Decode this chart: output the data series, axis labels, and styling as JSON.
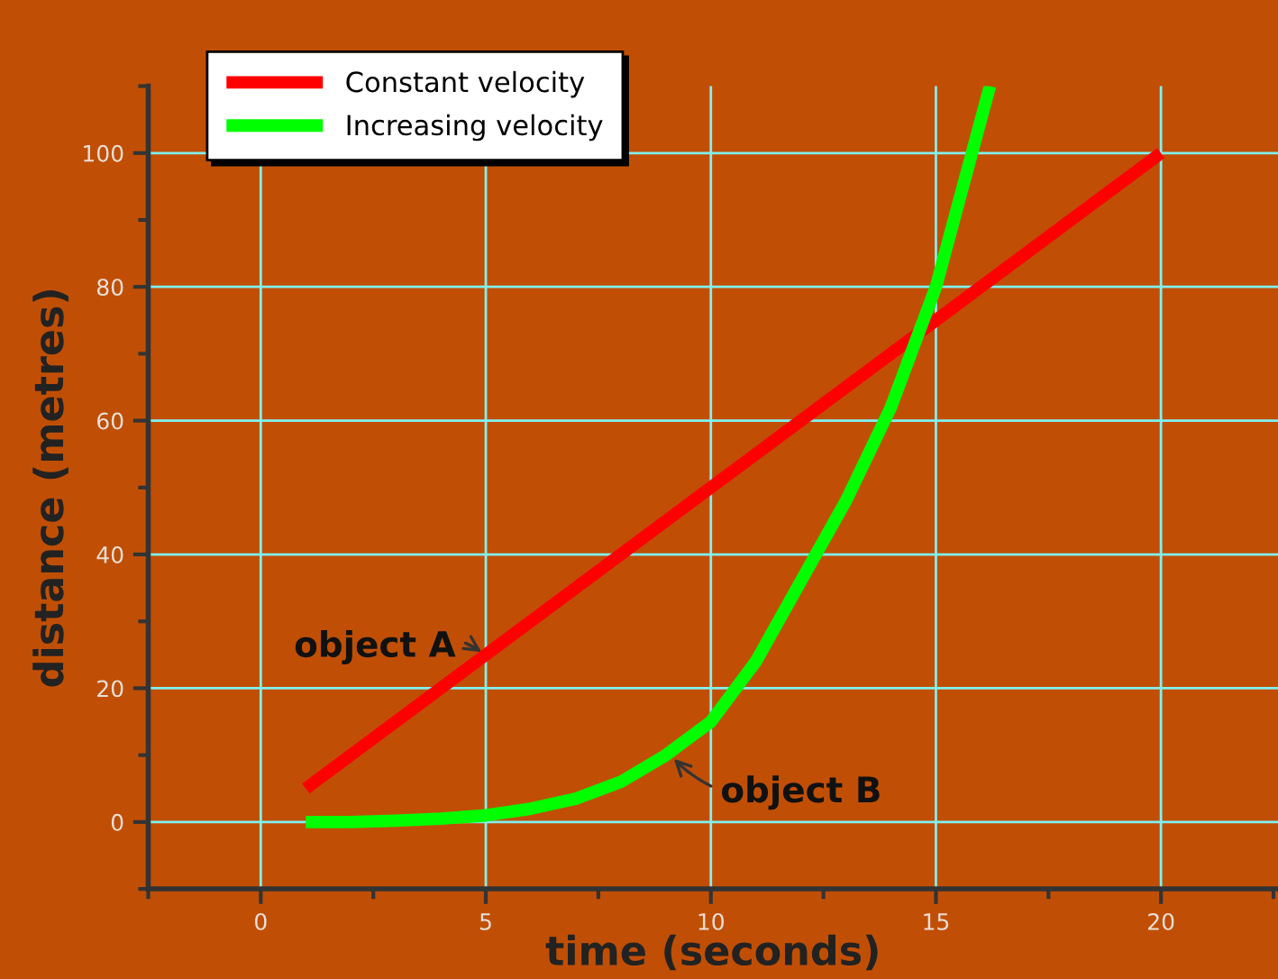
{
  "chart_data": {
    "type": "line",
    "xlabel": "time (seconds)",
    "ylabel": "distance (metres)",
    "series": [
      {
        "name": "Constant velocity",
        "color": "#ff0000",
        "x": [
          1,
          20
        ],
        "values": [
          5,
          100
        ]
      },
      {
        "name": "Increasing velocity",
        "color": "#00ff00",
        "x": [
          1,
          2,
          3,
          4,
          5,
          6,
          7,
          8,
          9,
          10,
          11,
          12,
          13,
          14,
          15,
          16.2
        ],
        "values": [
          0,
          0,
          0.2,
          0.5,
          1,
          2,
          3.5,
          6,
          10,
          15,
          24,
          36,
          48,
          62,
          80,
          110
        ]
      }
    ],
    "annotations": [
      {
        "text": "object A",
        "x": 5,
        "y": 25
      },
      {
        "text": "object B",
        "x": 9.1,
        "y": 10
      }
    ],
    "xlim": [
      -2.5,
      22.6
    ],
    "ylim": [
      -10,
      110
    ],
    "xticks": [
      0,
      5,
      10,
      15,
      20
    ],
    "yticks": [
      0,
      20,
      40,
      60,
      80,
      100
    ],
    "grid": true,
    "legend": "top left",
    "marker": "none",
    "line_style": "solid"
  }
}
